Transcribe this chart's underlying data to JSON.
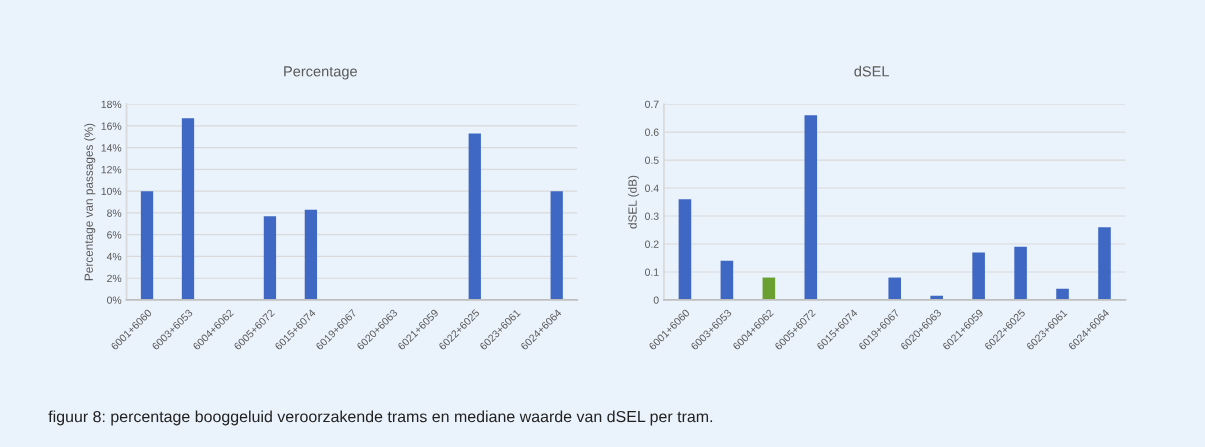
{
  "chart_data": [
    {
      "type": "bar",
      "title": "Percentage",
      "ylabel": "Percentage van passages (%)",
      "categories": [
        "6001+6060",
        "6003+6053",
        "6004+6062",
        "6005+6072",
        "6015+6074",
        "6019+6067",
        "6020+6063",
        "6021+6059",
        "6022+6025",
        "6023+6061",
        "6024+6064"
      ],
      "values": [
        10.0,
        16.7,
        0,
        7.7,
        8.3,
        0,
        0,
        0,
        15.3,
        0,
        10.0
      ],
      "color": "#3f68c4",
      "ylim": [
        0,
        18
      ],
      "yticks": [
        {
          "value": 0,
          "label": "0%"
        },
        {
          "value": 2,
          "label": "2%"
        },
        {
          "value": 4,
          "label": "4%"
        },
        {
          "value": 6,
          "label": "6%"
        },
        {
          "value": 8,
          "label": "8%"
        },
        {
          "value": 10,
          "label": "10%"
        },
        {
          "value": 12,
          "label": "12%"
        },
        {
          "value": 14,
          "label": "14%"
        },
        {
          "value": 16,
          "label": "16%"
        },
        {
          "value": 18,
          "label": "18%"
        }
      ],
      "grid": "y",
      "annotations": [
        "figuur 8: percentage booggeluid veroorzakende trams en mediane waarde van dSEL per tram."
      ]
    },
    {
      "type": "bar",
      "title": "dSEL",
      "ylabel": "dSEL (dB)",
      "categories": [
        "6001+6060",
        "6003+6053",
        "6004+6062",
        "6005+6072",
        "6015+6074",
        "6019+6067",
        "6020+6063",
        "6021+6059",
        "6022+6025",
        "6023+6061",
        "6024+6064"
      ],
      "values": [
        0.36,
        0.14,
        0.08,
        0.66,
        0,
        0.08,
        0.015,
        0.17,
        0.19,
        0.04,
        0.26
      ],
      "colors": [
        "#3f68c4",
        "#3f68c4",
        "#6aa031",
        "#3f68c4",
        "#3f68c4",
        "#3f68c4",
        "#3f68c4",
        "#3f68c4",
        "#3f68c4",
        "#3f68c4",
        "#3f68c4"
      ],
      "ylim": [
        0,
        0.7
      ],
      "yticks": [
        0,
        0.1,
        0.2,
        0.3,
        0.4,
        0.5,
        0.6,
        0.7
      ],
      "grid": "y"
    }
  ]
}
